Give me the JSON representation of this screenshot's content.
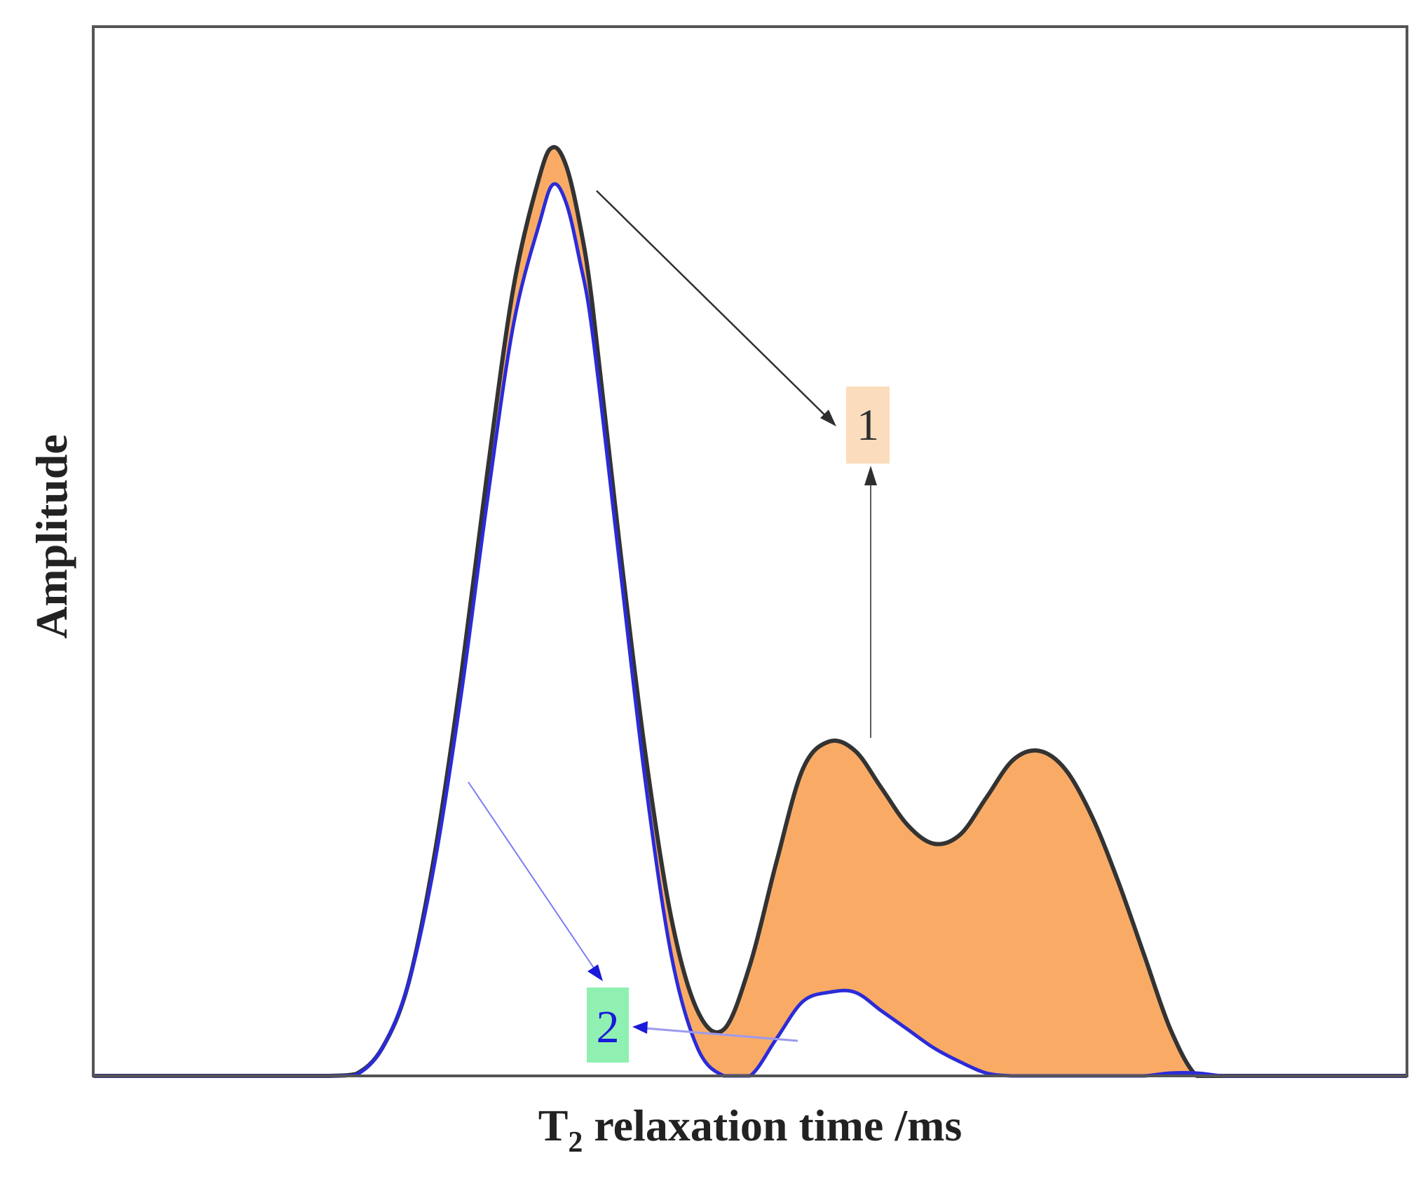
{
  "chart_data": {
    "type": "area",
    "title": "",
    "xlabel": {
      "main": "T",
      "sub": "2",
      "rest": " relaxation time /ms"
    },
    "ylabel": "Amplitude",
    "xlim": [
      0,
      100
    ],
    "ylim": [
      0,
      100
    ],
    "grid": false,
    "legend": "none",
    "ticks": "none",
    "x": [
      0,
      10,
      15,
      18,
      20,
      22,
      24,
      26,
      28,
      30,
      32,
      34,
      35,
      36,
      37,
      38,
      40,
      42,
      44,
      46,
      48,
      50,
      52,
      54,
      56,
      58,
      60,
      62,
      64,
      66,
      68,
      70,
      72,
      74,
      76,
      78,
      80,
      82,
      84,
      86,
      88,
      90,
      92,
      94,
      100
    ],
    "series": [
      {
        "values": [
          0,
          0,
          0,
          0,
          0.2,
          3,
          10,
          24,
          43,
          65,
          85,
          97,
          100,
          98,
          92,
          83,
          58,
          35,
          17,
          7,
          5,
          12,
          23,
          33,
          36,
          35,
          31,
          27,
          25,
          26,
          30,
          34,
          35,
          33,
          28,
          21,
          13,
          5,
          0,
          0,
          0,
          0,
          0,
          0,
          0
        ],
        "color": "#333333"
      },
      {
        "values": [
          0,
          0,
          0,
          0,
          0.1,
          3,
          10,
          23,
          41,
          62,
          81,
          92,
          96,
          94,
          88,
          80,
          56,
          32,
          13,
          3,
          0,
          0,
          4,
          8,
          9,
          9,
          7,
          5,
          3,
          1.5,
          0.3,
          0,
          0,
          0,
          0,
          0,
          0,
          0.3,
          0.3,
          0,
          0,
          0,
          0,
          0,
          0
        ],
        "color": "#2b2bd8"
      }
    ],
    "fill_between_color": "#f9ab65",
    "annotations": [
      {
        "text": "1",
        "box_color": "#fbdcbd",
        "text_color": "#2e2e2e"
      },
      {
        "text": "2",
        "box_color": "#8ff0b2",
        "text_color": "#1a1ad8"
      }
    ]
  }
}
